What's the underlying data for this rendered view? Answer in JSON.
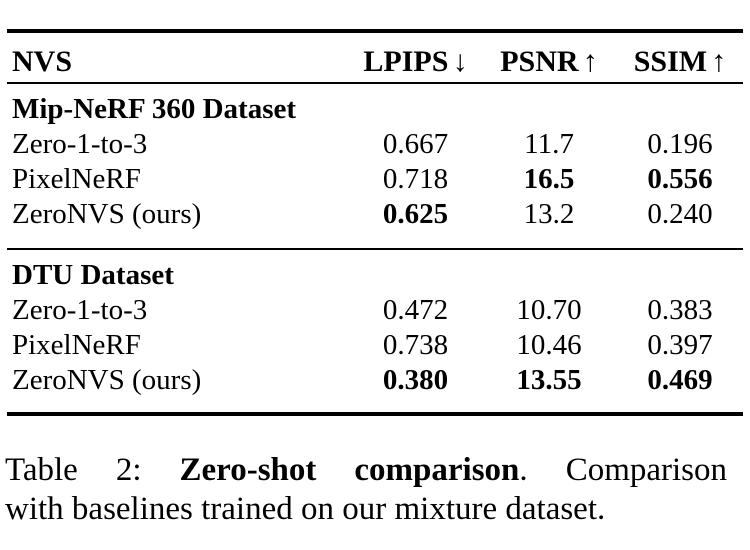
{
  "page": {
    "background": "#ffffff",
    "text_color": "#000000"
  },
  "table": {
    "header": {
      "method_col": "NVS",
      "metrics": [
        {
          "label": "LPIPS",
          "arrow": "↓"
        },
        {
          "label": "PSNR",
          "arrow": "↑"
        },
        {
          "label": "SSIM",
          "arrow": "↑"
        }
      ]
    },
    "sections": [
      {
        "title": "Mip-NeRF 360 Dataset",
        "rows": [
          {
            "method": "Zero-1-to-3",
            "lpips": "0.667",
            "psnr": "11.7",
            "ssim": "0.196"
          },
          {
            "method": "PixelNeRF",
            "lpips": "0.718",
            "psnr": "16.5",
            "ssim": "0.556"
          },
          {
            "method": "ZeroNVS (ours)",
            "lpips": "0.625",
            "psnr": "13.2",
            "ssim": "0.240"
          }
        ]
      },
      {
        "title": "DTU Dataset",
        "rows": [
          {
            "method": "Zero-1-to-3",
            "lpips": "0.472",
            "psnr": "10.70",
            "ssim": "0.383"
          },
          {
            "method": "PixelNeRF",
            "lpips": "0.738",
            "psnr": "10.46",
            "ssim": "0.397"
          },
          {
            "method": "ZeroNVS (ours)",
            "lpips": "0.380",
            "psnr": "13.55",
            "ssim": "0.469"
          }
        ]
      }
    ]
  },
  "caption": {
    "line1": {
      "prefix": "Table 2:",
      "emphasis": "Zero-shot comparison",
      "period": ".",
      "tail": "Comparison"
    },
    "line2": "with baselines trained on our mixture dataset."
  }
}
